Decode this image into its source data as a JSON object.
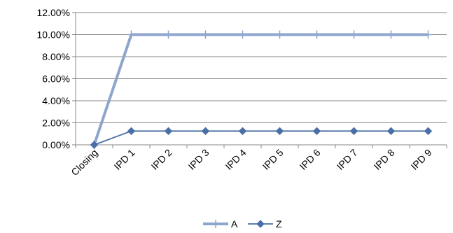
{
  "chart_data": {
    "type": "line",
    "title": "",
    "xlabel": "",
    "ylabel": "",
    "categories": [
      "Closing",
      "IPD 1",
      "IPD 2",
      "IPD 3",
      "IPD 4",
      "IPD 5",
      "IPD 6",
      "IPD 7",
      "IPD 8",
      "IPD 9"
    ],
    "series": [
      {
        "name": "A",
        "values": [
          0,
          10.0,
          10.0,
          10.0,
          10.0,
          10.0,
          10.0,
          10.0,
          10.0,
          10.0
        ],
        "color": "#8EA5CD",
        "marker": "plus"
      },
      {
        "name": "Z",
        "values": [
          0,
          1.25,
          1.25,
          1.25,
          1.25,
          1.25,
          1.25,
          1.25,
          1.25,
          1.25
        ],
        "color": "#4A6FA5",
        "marker": "diamond"
      }
    ],
    "ylim": [
      0,
      12
    ],
    "yticks": [
      "0.00%",
      "2.00%",
      "4.00%",
      "6.00%",
      "8.00%",
      "10.00%",
      "12.00%"
    ],
    "y_grid": true,
    "legend": "bottom"
  }
}
